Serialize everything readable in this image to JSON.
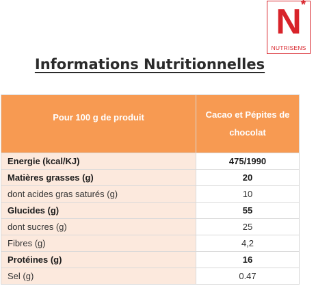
{
  "logo": {
    "letter": "N",
    "star": "*",
    "brand": "NUTRISENS"
  },
  "title": "Informations Nutritionnelles",
  "table": {
    "header": {
      "label": "Pour 100 g de produit",
      "value": "Cacao et Pépites de chocolat"
    },
    "rows": [
      {
        "label": "Energie (kcal/KJ)",
        "value": "475/1990",
        "bold": true
      },
      {
        "label": "Matières grasses (g)",
        "value": "20",
        "bold": true
      },
      {
        "label": "dont acides gras saturés (g)",
        "value": "10",
        "bold": false
      },
      {
        "label": "Glucides (g)",
        "value": "55",
        "bold": true
      },
      {
        "label": "dont sucres (g)",
        "value": "25",
        "bold": false
      },
      {
        "label": "Fibres (g)",
        "value": "4,2",
        "bold": false
      },
      {
        "label": "Protéines (g)",
        "value": "16",
        "bold": true
      },
      {
        "label": "Sel (g)",
        "value": "0.47",
        "bold": false
      }
    ]
  },
  "colors": {
    "brand_red": "#d8232a",
    "header_orange": "#f79a52",
    "label_cell_bg": "#fce9dd"
  }
}
